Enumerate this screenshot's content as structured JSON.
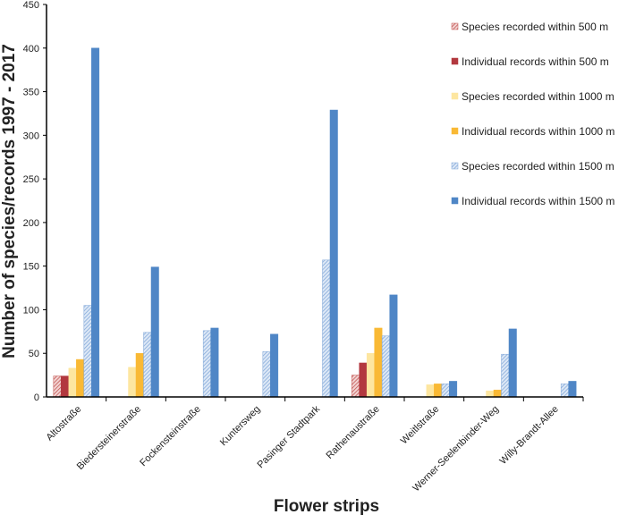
{
  "chart_data": {
    "type": "bar",
    "x_label": "Flower strips",
    "y_label": "Number of species/records  1997 - 2017",
    "categories": [
      "Altostraße",
      "Biedersteinerstraße",
      "Fockensteinstraße",
      "Kuntersweg",
      "Pasinger Stadtpark",
      "Rathenaustraße",
      "Weitlstraße",
      "Werner-Seelenbinder-Weg",
      "Willy-Brandt-Allee"
    ],
    "series": [
      {
        "name": "Species recorded within 500 m",
        "color": "#c0504d",
        "hatched": true,
        "values": [
          24,
          null,
          null,
          null,
          null,
          25,
          null,
          null,
          null
        ]
      },
      {
        "name": "Individual records within 500 m",
        "color": "#b2383f",
        "hatched": false,
        "values": [
          24,
          null,
          null,
          null,
          null,
          39,
          null,
          null,
          null
        ]
      },
      {
        "name": "Species recorded within 1000 m",
        "color": "#fde6a0",
        "hatched": false,
        "values": [
          33,
          34,
          null,
          null,
          null,
          50,
          14,
          7,
          null
        ]
      },
      {
        "name": "Individual records within 1000 m",
        "color": "#f9b935",
        "hatched": false,
        "values": [
          43,
          50,
          null,
          null,
          null,
          79,
          15,
          8,
          null
        ]
      },
      {
        "name": "Species recorded within 1500 m",
        "color": "#7fa6d8",
        "hatched": true,
        "values": [
          105,
          74,
          76,
          52,
          157,
          70,
          15,
          49,
          15
        ]
      },
      {
        "name": "Individual records within 1500 m",
        "color": "#4f86c6",
        "hatched": false,
        "values": [
          400,
          149,
          79,
          72,
          329,
          117,
          18,
          78,
          18
        ]
      }
    ],
    "ylim": [
      0,
      450
    ],
    "yticks": [
      0,
      50,
      100,
      150,
      200,
      250,
      300,
      350,
      400,
      450
    ],
    "legend": "top-right"
  }
}
